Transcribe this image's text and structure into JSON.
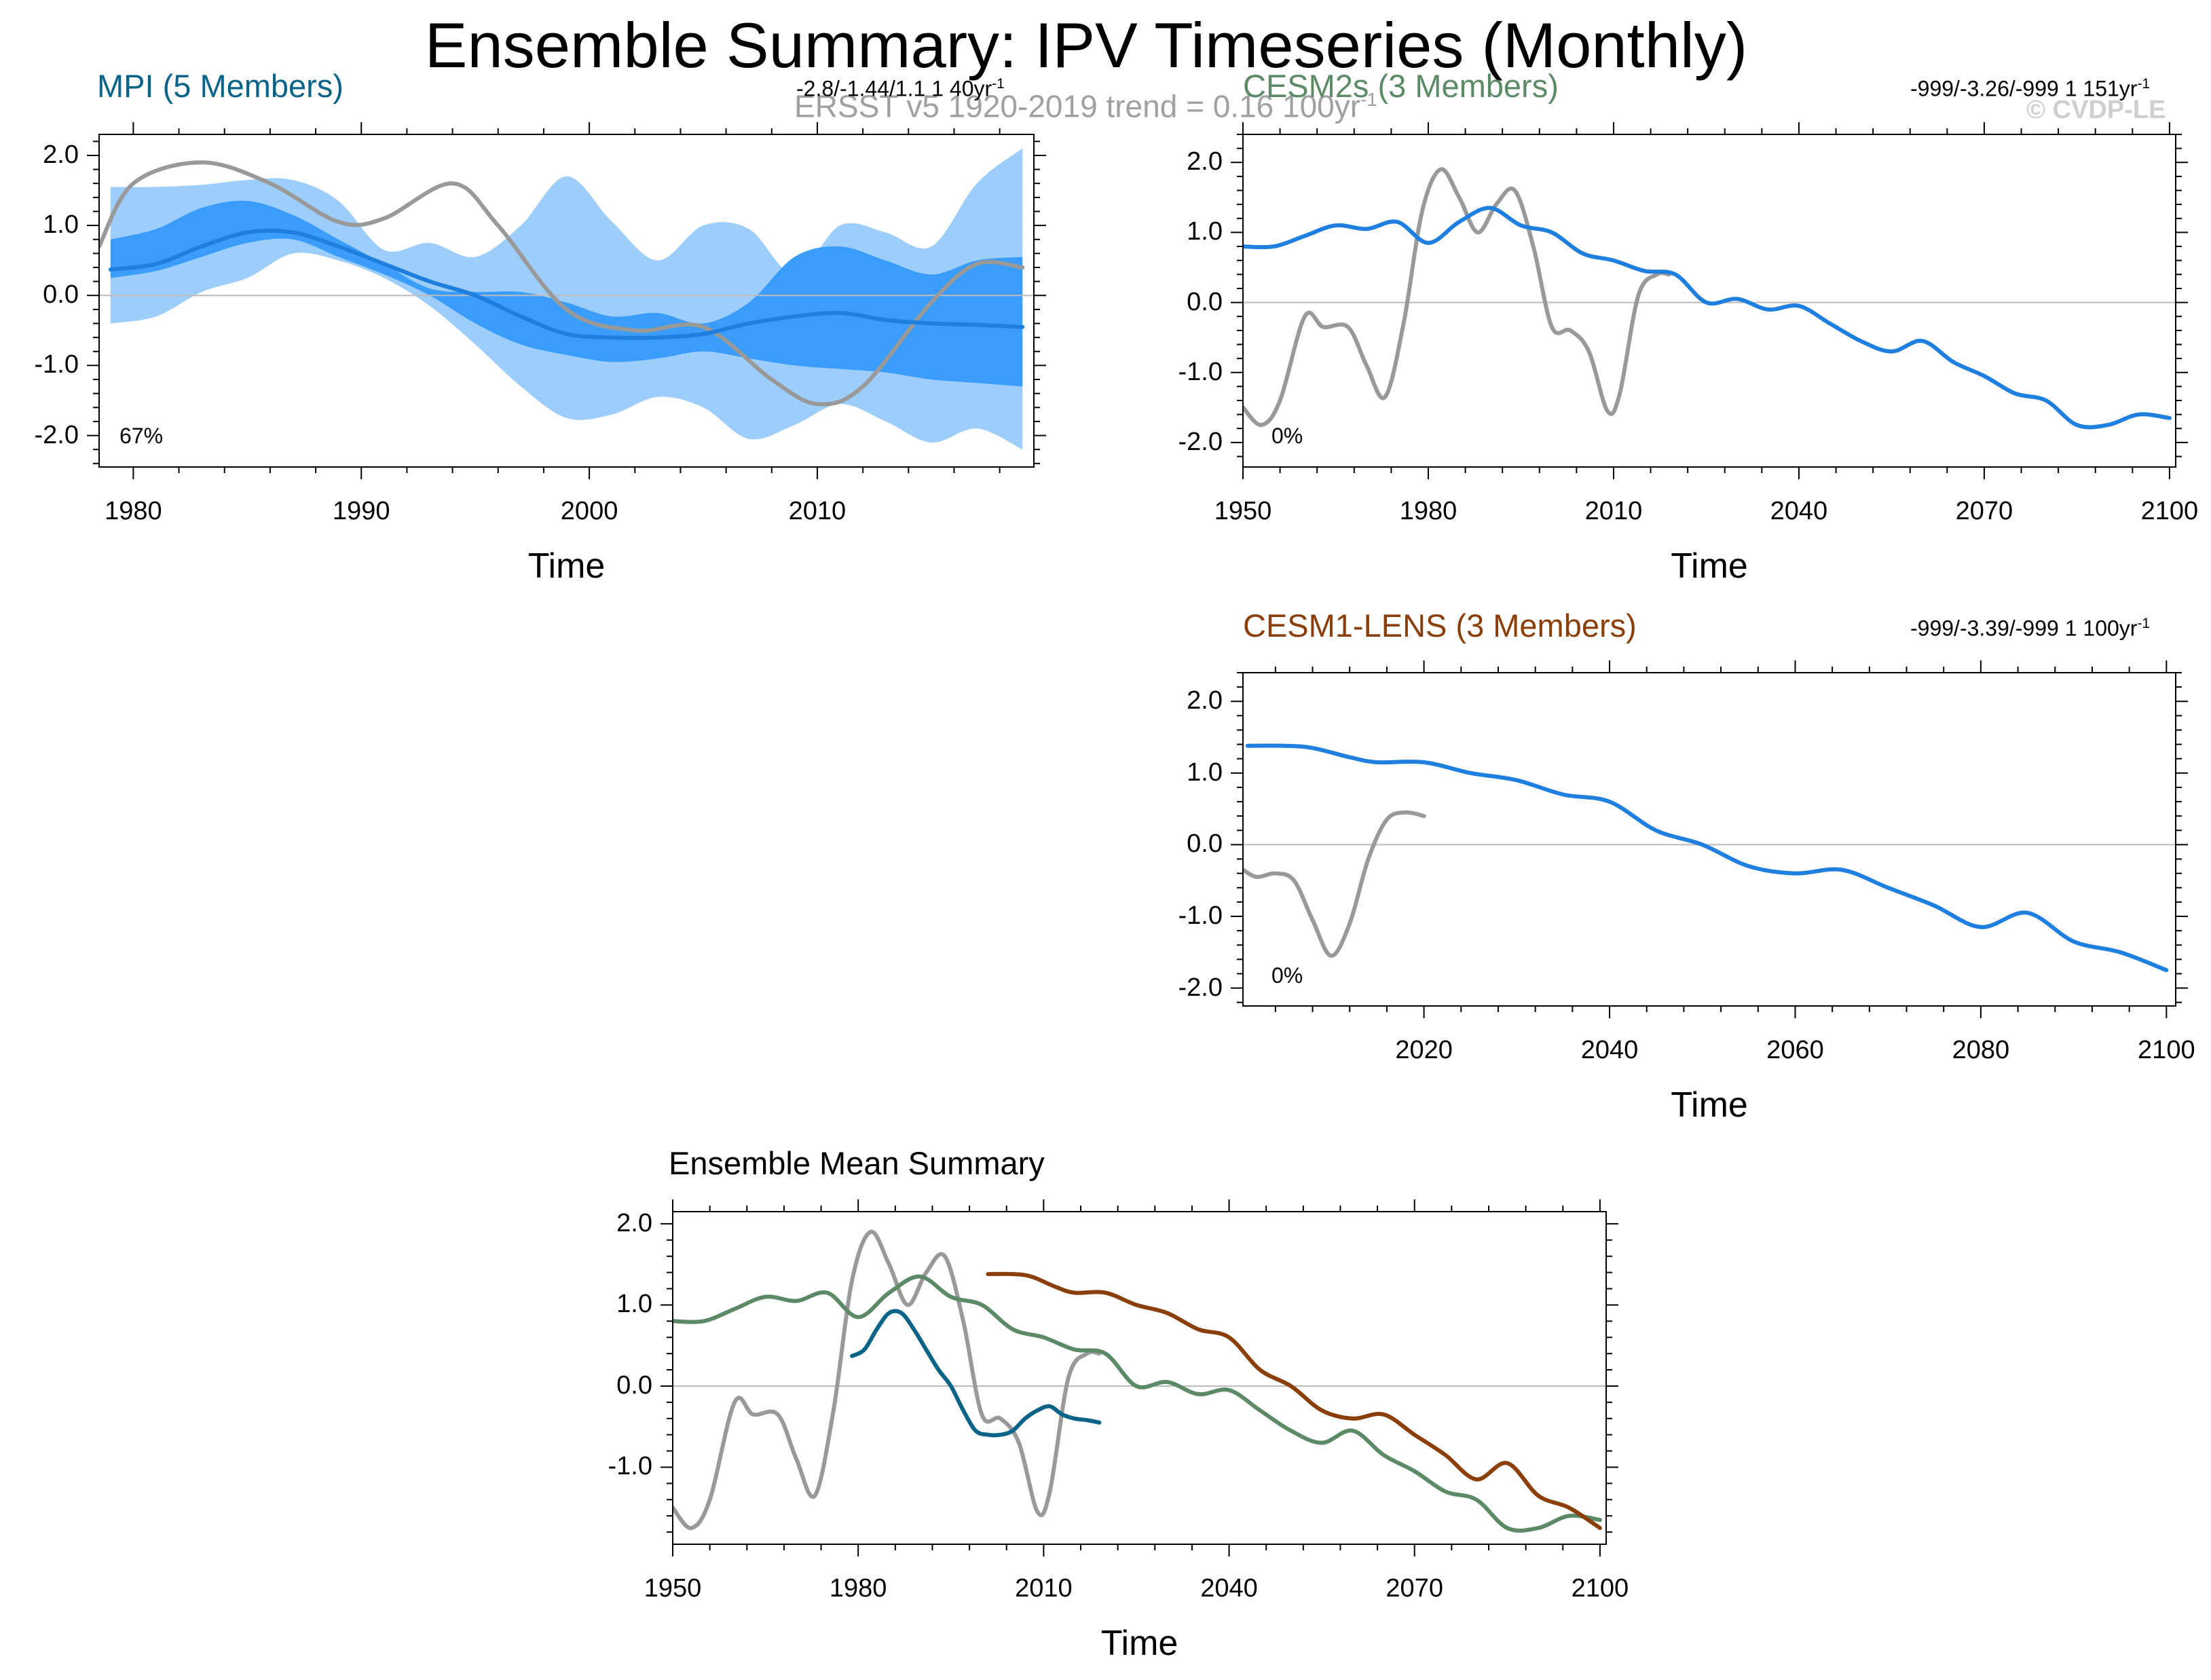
{
  "figure": {
    "title": "Ensemble Summary: IPV Timeseries (Monthly)",
    "obs_subtitle": "ERSST v5 1920-2019 trend = 0.16 100yr",
    "obs_subtitle_sup": "-1",
    "copyright": "© CVDP-LE"
  },
  "colors": {
    "obs": "#999999",
    "mpi": "#0b6388",
    "cesm2": "#5d8a66",
    "cesm1": "#8a3f0a",
    "member_line": "#1f7fdf",
    "band_outer": "#9dcdfb",
    "band_inner": "#3a9dfb",
    "zero_line": "#bbbbbb",
    "axis": "#000000"
  },
  "chart_data": [
    {
      "id": "mpi",
      "type": "area",
      "title": "MPI (5 Members)",
      "stats": "-2.8/-1.44/1.1 1 40yr",
      "stats_sup": "-1",
      "percent_label": "67%",
      "xlabel": "Time",
      "xlim": [
        1978.5,
        2019.5
      ],
      "ylim": [
        -2.45,
        2.3
      ],
      "xticks": [
        1980,
        1990,
        2000,
        2010
      ],
      "yticks": [
        2.0,
        1.0,
        0.0,
        -1.0,
        -2.0
      ],
      "ytick_labels": [
        "2.0",
        "1.0",
        "0.0",
        "-1.0",
        "-2.0"
      ],
      "series": [
        {
          "role": "band_outer_upper",
          "x": [
            1979,
            1981,
            1983,
            1985,
            1987,
            1989,
            1991,
            1993,
            1995,
            1997,
            1999,
            2001,
            2003,
            2005,
            2007,
            2009,
            2011,
            2013,
            2015,
            2017,
            2019
          ],
          "values": [
            1.55,
            1.55,
            1.58,
            1.65,
            1.65,
            1.35,
            0.65,
            0.75,
            0.55,
            1.0,
            1.7,
            1.05,
            0.5,
            1.0,
            0.95,
            0.3,
            1.0,
            0.9,
            0.7,
            1.6,
            2.1
          ]
        },
        {
          "role": "band_outer_lower",
          "x": [
            1979,
            1981,
            1983,
            1985,
            1987,
            1989,
            1991,
            1993,
            1995,
            1997,
            1999,
            2001,
            2003,
            2005,
            2007,
            2009,
            2011,
            2013,
            2015,
            2017,
            2019
          ],
          "values": [
            -0.4,
            -0.3,
            0.05,
            0.25,
            0.6,
            0.5,
            0.25,
            -0.15,
            -0.7,
            -1.3,
            -1.75,
            -1.7,
            -1.45,
            -1.6,
            -2.05,
            -1.85,
            -1.55,
            -1.8,
            -2.1,
            -1.9,
            -2.2
          ]
        },
        {
          "role": "band_inner_upper",
          "x": [
            1979,
            1981,
            1983,
            1985,
            1987,
            1989,
            1991,
            1993,
            1995,
            1997,
            1999,
            2001,
            2003,
            2005,
            2007,
            2009,
            2011,
            2013,
            2015,
            2017,
            2019
          ],
          "values": [
            0.8,
            0.95,
            1.25,
            1.35,
            1.15,
            0.8,
            0.45,
            0.1,
            0.05,
            0.05,
            -0.1,
            -0.3,
            -0.25,
            -0.4,
            -0.1,
            0.55,
            0.7,
            0.5,
            0.3,
            0.5,
            0.55
          ]
        },
        {
          "role": "band_inner_lower",
          "x": [
            1979,
            1981,
            1983,
            1985,
            1987,
            1989,
            1991,
            1993,
            1995,
            1997,
            1999,
            2001,
            2003,
            2005,
            2007,
            2009,
            2011,
            2013,
            2015,
            2017,
            2019
          ],
          "values": [
            0.25,
            0.35,
            0.55,
            0.75,
            0.8,
            0.55,
            0.3,
            0.0,
            -0.4,
            -0.7,
            -0.85,
            -0.95,
            -0.9,
            -0.8,
            -0.9,
            -1.0,
            -1.05,
            -1.1,
            -1.2,
            -1.25,
            -1.3
          ]
        },
        {
          "role": "ensemble_mean",
          "x": [
            1979,
            1981,
            1983,
            1985,
            1987,
            1989,
            1991,
            1993,
            1995,
            1997,
            1999,
            2001,
            2003,
            2005,
            2007,
            2009,
            2011,
            2013,
            2015,
            2017,
            2019
          ],
          "values": [
            0.37,
            0.45,
            0.7,
            0.9,
            0.9,
            0.7,
            0.45,
            0.2,
            0.0,
            -0.3,
            -0.55,
            -0.6,
            -0.6,
            -0.55,
            -0.4,
            -0.3,
            -0.25,
            -0.35,
            -0.4,
            -0.42,
            -0.45
          ]
        },
        {
          "role": "observations",
          "x": [
            1978.5,
            1980,
            1983,
            1986,
            1989,
            1991,
            1994,
            1996,
            1999,
            2002,
            2005,
            2008,
            2010,
            2012,
            2015,
            2017,
            2019
          ],
          "values": [
            0.7,
            1.6,
            1.9,
            1.6,
            1.05,
            1.1,
            1.6,
            1.0,
            -0.2,
            -0.5,
            -0.45,
            -1.2,
            -1.55,
            -1.3,
            -0.1,
            0.45,
            0.4
          ]
        }
      ]
    },
    {
      "id": "cesm2",
      "type": "line",
      "title": "CESM2s (3 Members)",
      "stats": "-999/-3.26/-999 1 151yr",
      "stats_sup": "-1",
      "percent_label": "0%",
      "xlabel": "Time",
      "xlim": [
        1950,
        2101
      ],
      "ylim": [
        -2.35,
        2.4
      ],
      "xticks": [
        1950,
        1980,
        2010,
        2040,
        2070,
        2100
      ],
      "yticks": [
        2.0,
        1.0,
        0.0,
        -1.0,
        -2.0
      ],
      "ytick_labels": [
        "2.0",
        "1.0",
        "0.0",
        "-1.0",
        "-2.0"
      ],
      "series": [
        {
          "role": "ensemble_mean",
          "x": [
            1950,
            1955,
            1960,
            1965,
            1970,
            1975,
            1980,
            1985,
            1990,
            1995,
            2000,
            2005,
            2010,
            2015,
            2020,
            2025,
            2030,
            2035,
            2040,
            2045,
            2050,
            2055,
            2060,
            2065,
            2070,
            2075,
            2080,
            2085,
            2090,
            2095,
            2100
          ],
          "values": [
            0.8,
            0.8,
            0.95,
            1.1,
            1.05,
            1.15,
            0.85,
            1.15,
            1.35,
            1.1,
            1.0,
            0.7,
            0.6,
            0.45,
            0.4,
            0.0,
            0.05,
            -0.1,
            -0.05,
            -0.3,
            -0.55,
            -0.7,
            -0.55,
            -0.85,
            -1.05,
            -1.3,
            -1.4,
            -1.75,
            -1.75,
            -1.6,
            -1.65
          ]
        },
        {
          "role": "observations",
          "x": [
            1950,
            1953,
            1956,
            1960,
            1963,
            1967,
            1970,
            1973,
            1976,
            1979,
            1982,
            1985,
            1988,
            1991,
            1994,
            1997,
            2000,
            2003,
            2006,
            2009,
            2011,
            2014,
            2017,
            2019
          ],
          "values": [
            -1.5,
            -1.75,
            -1.4,
            -0.2,
            -0.35,
            -0.35,
            -0.9,
            -1.35,
            -0.3,
            1.3,
            1.9,
            1.5,
            1.0,
            1.4,
            1.6,
            0.8,
            -0.35,
            -0.4,
            -0.7,
            -1.55,
            -1.3,
            0.1,
            0.4,
            0.4
          ]
        }
      ]
    },
    {
      "id": "cesm1",
      "type": "line",
      "title": "CESM1-LENS (3 Members)",
      "stats": "-999/-3.39/-999 1 100yr",
      "stats_sup": "-1",
      "percent_label": "0%",
      "xlabel": "Time",
      "xlim": [
        2000.5,
        2101
      ],
      "ylim": [
        -2.25,
        2.4
      ],
      "xticks": [
        2020,
        2040,
        2060,
        2080,
        2100
      ],
      "yticks": [
        2.0,
        1.0,
        0.0,
        -1.0,
        -2.0
      ],
      "ytick_labels": [
        "2.0",
        "1.0",
        "0.0",
        "-1.0",
        "-2.0"
      ],
      "series": [
        {
          "role": "ensemble_mean",
          "x": [
            2001,
            2005,
            2008,
            2012,
            2015,
            2020,
            2025,
            2030,
            2035,
            2040,
            2045,
            2050,
            2055,
            2060,
            2065,
            2070,
            2075,
            2080,
            2085,
            2090,
            2095,
            2100
          ],
          "values": [
            1.38,
            1.38,
            1.35,
            1.22,
            1.15,
            1.15,
            1.0,
            0.9,
            0.7,
            0.6,
            0.2,
            0.0,
            -0.3,
            -0.4,
            -0.35,
            -0.6,
            -0.85,
            -1.15,
            -0.95,
            -1.35,
            -1.5,
            -1.75
          ]
        },
        {
          "role": "observations",
          "x": [
            2000.5,
            2002,
            2004,
            2006,
            2008,
            2010,
            2012,
            2014,
            2016,
            2018,
            2020
          ],
          "values": [
            -0.35,
            -0.45,
            -0.4,
            -0.5,
            -1.05,
            -1.55,
            -1.1,
            -0.2,
            0.35,
            0.45,
            0.4
          ]
        }
      ]
    },
    {
      "id": "summary",
      "type": "line",
      "title": "Ensemble Mean Summary",
      "xlabel": "Time",
      "xlim": [
        1950,
        2101
      ],
      "ylim": [
        -1.95,
        2.15
      ],
      "xticks": [
        1950,
        1980,
        2010,
        2040,
        2070,
        2100
      ],
      "yticks": [
        2.0,
        1.0,
        0.0,
        -1.0
      ],
      "ytick_labels": [
        "2.0",
        "1.0",
        "0.0",
        "-1.0"
      ],
      "series": [
        {
          "role": "observations",
          "x": [
            1950,
            1953,
            1956,
            1960,
            1963,
            1967,
            1970,
            1973,
            1976,
            1979,
            1982,
            1985,
            1988,
            1991,
            1994,
            1997,
            2000,
            2003,
            2006,
            2009,
            2011,
            2014,
            2017,
            2019
          ],
          "values": [
            -1.5,
            -1.75,
            -1.4,
            -0.2,
            -0.35,
            -0.35,
            -0.9,
            -1.35,
            -0.3,
            1.3,
            1.9,
            1.5,
            1.0,
            1.4,
            1.6,
            0.8,
            -0.35,
            -0.4,
            -0.7,
            -1.55,
            -1.3,
            0.1,
            0.4,
            0.4
          ]
        },
        {
          "role": "cesm2",
          "x": [
            1950,
            1955,
            1960,
            1965,
            1970,
            1975,
            1980,
            1985,
            1990,
            1995,
            2000,
            2005,
            2010,
            2015,
            2020,
            2025,
            2030,
            2035,
            2040,
            2045,
            2050,
            2055,
            2060,
            2065,
            2070,
            2075,
            2080,
            2085,
            2090,
            2095,
            2100
          ],
          "values": [
            0.8,
            0.8,
            0.95,
            1.1,
            1.05,
            1.15,
            0.85,
            1.15,
            1.35,
            1.1,
            1.0,
            0.7,
            0.6,
            0.45,
            0.4,
            0.0,
            0.05,
            -0.1,
            -0.05,
            -0.3,
            -0.55,
            -0.7,
            -0.55,
            -0.85,
            -1.05,
            -1.3,
            -1.4,
            -1.75,
            -1.75,
            -1.6,
            -1.65
          ]
        },
        {
          "role": "mpi",
          "x": [
            1979,
            1981,
            1983,
            1985,
            1987,
            1989,
            1991,
            1993,
            1995,
            1997,
            1999,
            2001,
            2003,
            2005,
            2007,
            2009,
            2011,
            2013,
            2015,
            2017,
            2019
          ],
          "values": [
            0.37,
            0.45,
            0.7,
            0.9,
            0.9,
            0.7,
            0.45,
            0.2,
            0.0,
            -0.3,
            -0.55,
            -0.6,
            -0.6,
            -0.55,
            -0.4,
            -0.3,
            -0.25,
            -0.35,
            -0.4,
            -0.42,
            -0.45
          ]
        },
        {
          "role": "cesm1",
          "x": [
            2001,
            2005,
            2008,
            2012,
            2015,
            2020,
            2025,
            2030,
            2035,
            2040,
            2045,
            2050,
            2055,
            2060,
            2065,
            2070,
            2075,
            2080,
            2085,
            2090,
            2095,
            2100
          ],
          "values": [
            1.38,
            1.38,
            1.35,
            1.22,
            1.15,
            1.15,
            1.0,
            0.9,
            0.7,
            0.6,
            0.2,
            0.0,
            -0.3,
            -0.4,
            -0.35,
            -0.6,
            -0.85,
            -1.15,
            -0.95,
            -1.35,
            -1.5,
            -1.75
          ]
        }
      ]
    }
  ]
}
